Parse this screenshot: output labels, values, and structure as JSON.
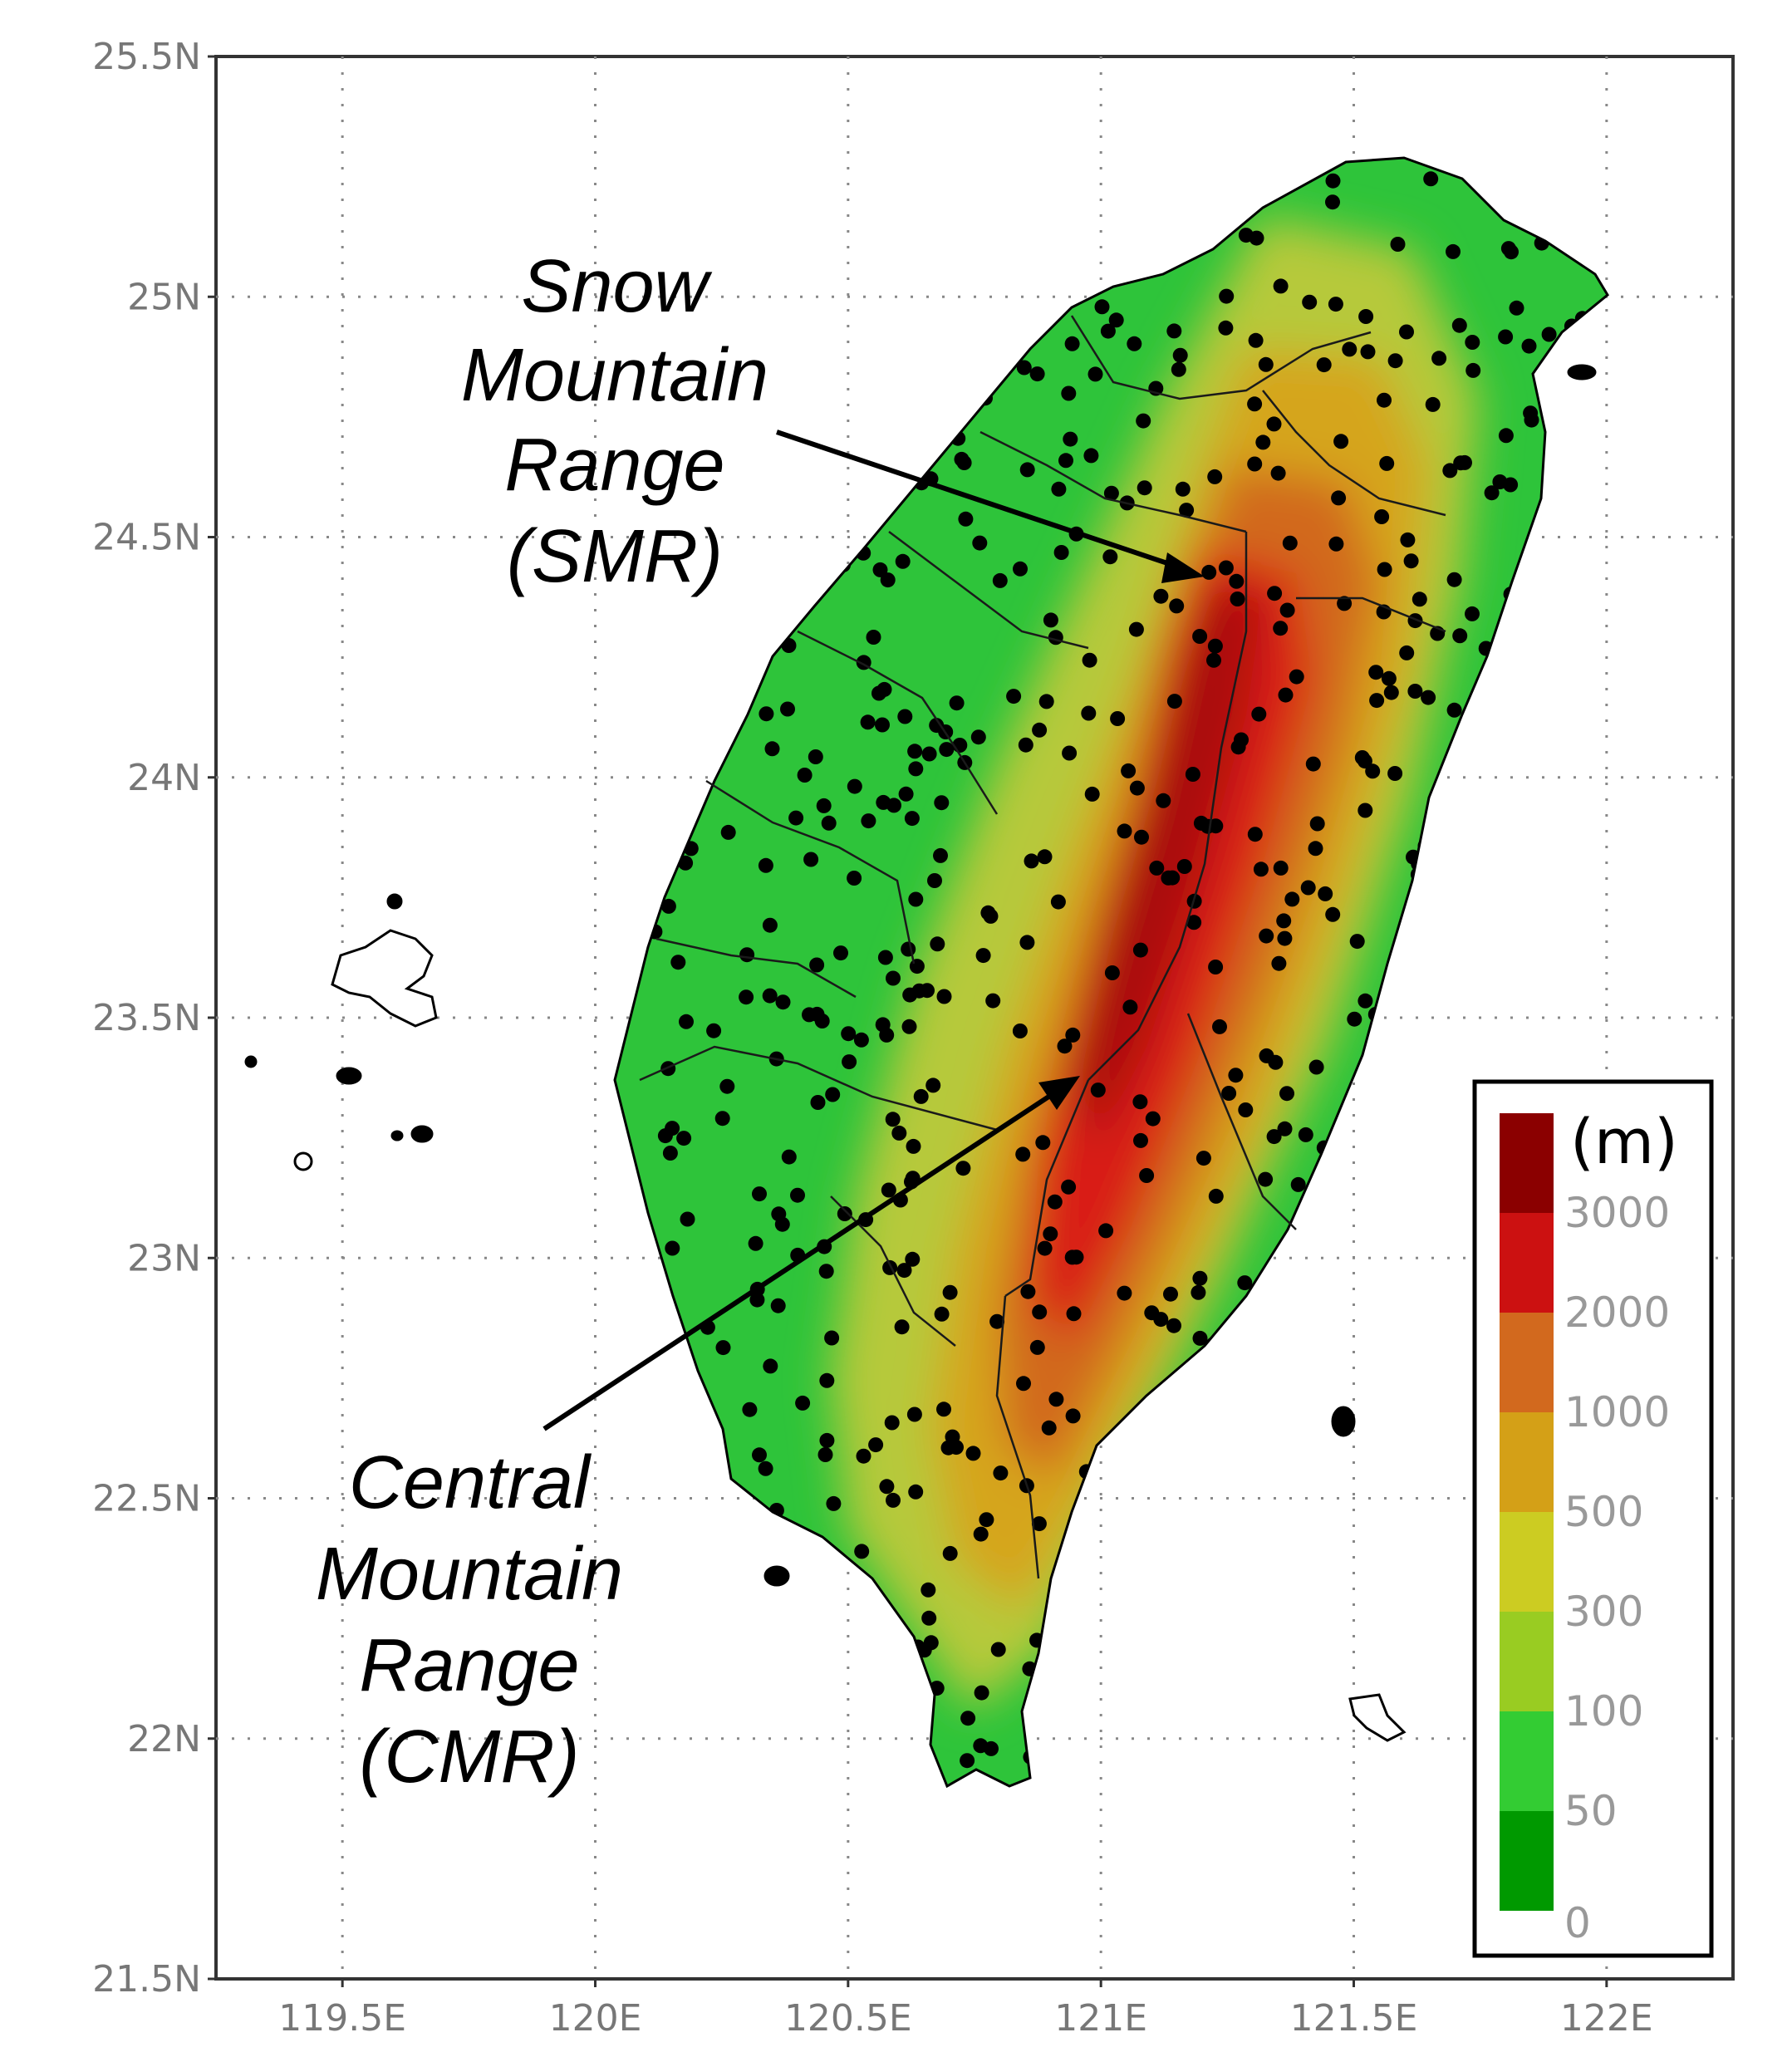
{
  "map": {
    "subject": "Taiwan terrain elevation",
    "lat_ticks": [
      {
        "value": 25.5,
        "label": "25.5N"
      },
      {
        "value": 25.0,
        "label": "25N"
      },
      {
        "value": 24.5,
        "label": "24.5N"
      },
      {
        "value": 24.0,
        "label": "24N"
      },
      {
        "value": 23.5,
        "label": "23.5N"
      },
      {
        "value": 23.0,
        "label": "23N"
      },
      {
        "value": 22.5,
        "label": "22.5N"
      },
      {
        "value": 22.0,
        "label": "22N"
      },
      {
        "value": 21.5,
        "label": "21.5N"
      }
    ],
    "lon_ticks": [
      {
        "value": 119.5,
        "label": "119.5E"
      },
      {
        "value": 120.0,
        "label": "120E"
      },
      {
        "value": 120.5,
        "label": "120.5E"
      },
      {
        "value": 121.0,
        "label": "121E"
      },
      {
        "value": 121.5,
        "label": "121.5E"
      },
      {
        "value": 122.0,
        "label": "122E"
      }
    ],
    "lon_range": [
      119.25,
      122.25
    ],
    "lat_range": [
      21.5,
      25.5
    ]
  },
  "annotations": {
    "smr": {
      "lines": [
        "Snow",
        "Mountain",
        "Range",
        "(SMR)"
      ],
      "target": [
        121.2,
        24.45
      ]
    },
    "cmr": {
      "lines": [
        "Central",
        "Mountain",
        "Range",
        "(CMR)"
      ],
      "target": [
        120.95,
        23.38
      ]
    }
  },
  "legend": {
    "unit": "(m)",
    "levels": [
      "3000",
      "2000",
      "1000",
      "500",
      "300",
      "100",
      "50",
      "0"
    ],
    "colors": [
      "#8b0000",
      "#cc1111",
      "#d2691e",
      "#d4a017",
      "#cccc22",
      "#99cc22",
      "#33cc33",
      "#009900"
    ]
  },
  "colors": {
    "lowland": "#2ec43a",
    "hills": "#b6c93a",
    "mid": "#d5a51c",
    "high": "#d2691e",
    "peak": "#d91d12",
    "summit": "#a80c0a"
  }
}
